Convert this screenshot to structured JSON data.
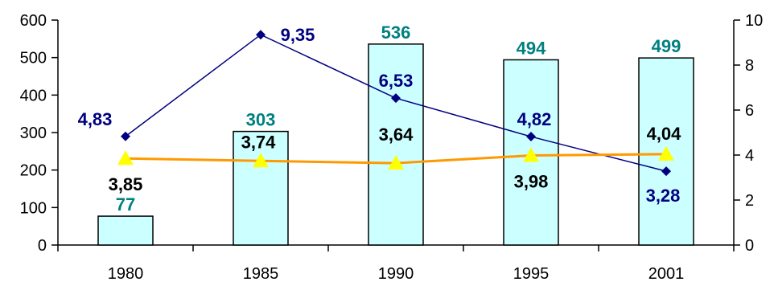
{
  "chart_data": {
    "type": "bar",
    "categories": [
      "1980",
      "1985",
      "1990",
      "1995",
      "2001"
    ],
    "y_left": {
      "min": 0,
      "max": 600,
      "ticks": [
        "0",
        "100",
        "200",
        "300",
        "400",
        "500",
        "600"
      ]
    },
    "y_right": {
      "min": 0,
      "max": 10,
      "ticks": [
        "0",
        "2",
        "4",
        "6",
        "8",
        "10"
      ]
    },
    "series": [
      {
        "type": "bar",
        "axis": "left",
        "values": [
          77,
          303,
          536,
          494,
          499
        ],
        "labels": [
          "77",
          "303",
          "536",
          "494",
          "499"
        ],
        "fill_color": "#ccffff",
        "label_color": "#008080"
      },
      {
        "type": "line",
        "axis": "right",
        "marker": "diamond",
        "values": [
          4.83,
          9.35,
          6.53,
          4.82,
          3.28
        ],
        "labels": [
          "4,83",
          "9,35",
          "6,53",
          "4,82",
          "3,28"
        ],
        "color": "#000080"
      },
      {
        "type": "line",
        "axis": "right",
        "marker": "triangle",
        "values": [
          3.85,
          3.74,
          3.64,
          3.98,
          4.04
        ],
        "labels": [
          "3,85",
          "3,74",
          "3,64",
          "3,98",
          "4,04"
        ],
        "color": "#ff9900",
        "marker_color": "#ffff00",
        "label_color": "#000000"
      }
    ],
    "grid": false,
    "legend": "none"
  }
}
